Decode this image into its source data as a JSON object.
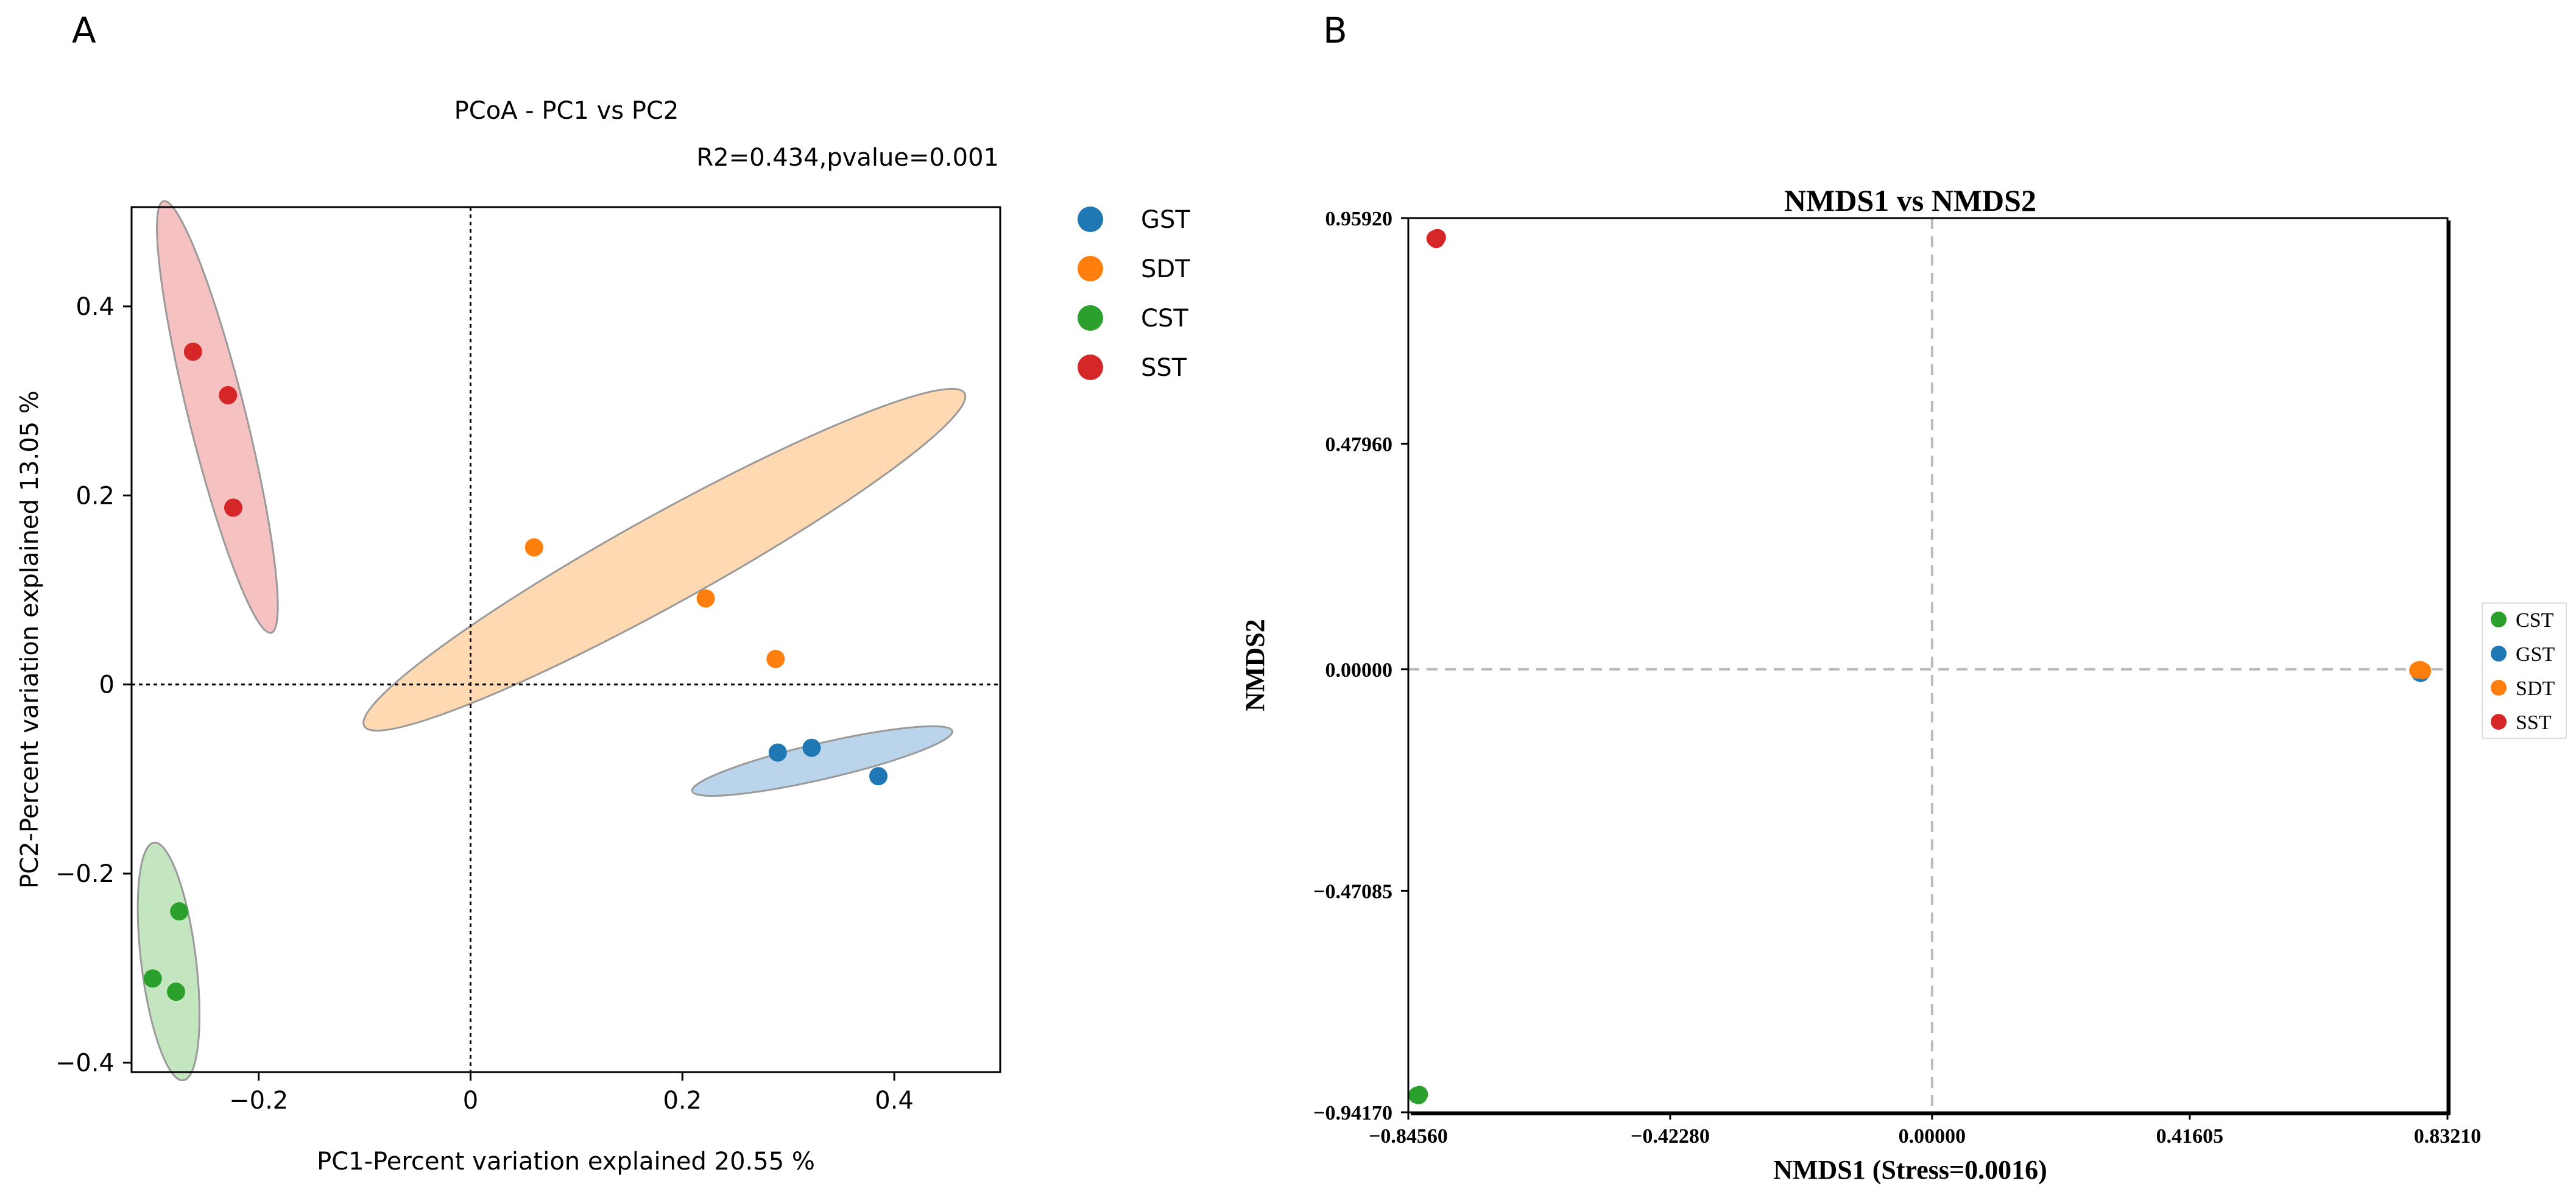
{
  "panels": {
    "a": {
      "label": "A"
    },
    "b": {
      "label": "B"
    }
  },
  "colors": {
    "GST": "#1f77b4",
    "SDT": "#ff7f0e",
    "CST": "#2ca02c",
    "SST": "#d62728",
    "GST_fill": "#a9c9e6",
    "SDT_fill": "#ffcf9e",
    "CST_fill": "#b4e0b0",
    "SST_fill": "#f2b1b2"
  },
  "chart_data": [
    {
      "type": "scatter",
      "title": "PCoA - PC1 vs PC2",
      "annotation": "R2=0.434,pvalue=0.001",
      "xlabel": "PC1-Percent variation explained 20.55 %",
      "ylabel": "PC2-Percent variation explained 13.05 %",
      "xlim": [
        -0.32,
        0.5
      ],
      "ylim": [
        -0.41,
        0.505
      ],
      "xticks": [
        -0.2,
        0,
        0.2,
        0.4
      ],
      "xtick_labels": [
        "−0.2",
        "0",
        "0.2",
        "0.4"
      ],
      "yticks": [
        -0.4,
        -0.2,
        0,
        0.2,
        0.4
      ],
      "ytick_labels": [
        "−0.4",
        "−0.2",
        "0",
        "0.2",
        "0.4"
      ],
      "reference_lines": {
        "x": 0,
        "y": 0,
        "style": "dotted"
      },
      "legend_position": "outside-right-top",
      "series": [
        {
          "name": "GST",
          "x": [
            0.29,
            0.322,
            0.385
          ],
          "y": [
            -0.072,
            -0.067,
            -0.097
          ],
          "ellipse": {
            "cx": 0.332,
            "cy": -0.081,
            "rx": 0.126,
            "ry": 0.019,
            "angle_deg": -13
          }
        },
        {
          "name": "SDT",
          "x": [
            0.06,
            0.222,
            0.288
          ],
          "y": [
            0.145,
            0.091,
            0.027
          ],
          "ellipse": {
            "cx": 0.183,
            "cy": 0.132,
            "rx": 0.324,
            "ry": 0.047,
            "angle_deg": -29
          }
        },
        {
          "name": "CST",
          "x": [
            -0.3,
            -0.275,
            -0.278
          ],
          "y": [
            -0.311,
            -0.24,
            -0.325
          ],
          "ellipse": {
            "cx": -0.285,
            "cy": -0.293,
            "rx": 0.113,
            "ry": 0.029,
            "angle_deg": 83
          }
        },
        {
          "name": "SST",
          "x": [
            -0.262,
            -0.229,
            -0.224
          ],
          "y": [
            0.352,
            0.306,
            0.187
          ],
          "ellipse": {
            "cx": -0.239,
            "cy": 0.283,
            "rx": 0.21,
            "ry": 0.03,
            "angle_deg": 76
          }
        }
      ]
    },
    {
      "type": "scatter",
      "title": "NMDS1 vs NMDS2",
      "xlabel": "NMDS1 (Stress=0.0016)",
      "ylabel": "NMDS2",
      "xlim": [
        -0.8456,
        0.8321
      ],
      "ylim": [
        -0.9417,
        0.9592
      ],
      "xticks": [
        -0.8456,
        -0.4228,
        0.0,
        0.41605,
        0.8321
      ],
      "xtick_labels": [
        "−0.84560",
        "−0.42280",
        "0.00000",
        "0.41605",
        "0.83210"
      ],
      "yticks": [
        -0.9417,
        -0.47085,
        0.0,
        0.4796,
        0.9592
      ],
      "ytick_labels": [
        "−0.94170",
        "−0.47085",
        "0.00000",
        "0.47960",
        "0.95920"
      ],
      "reference_lines": {
        "x": 0,
        "y": 0,
        "style": "dashed"
      },
      "legend_position": "outside-right-middle",
      "series": [
        {
          "name": "CST",
          "x": [
            -0.8315,
            -0.8275,
            -0.829
          ],
          "y": [
            -0.9055,
            -0.9035,
            -0.9065
          ]
        },
        {
          "name": "GST",
          "x": [
            0.787,
            0.791,
            0.789
          ],
          "y": [
            -0.008,
            -0.006,
            -0.009
          ]
        },
        {
          "name": "SDT",
          "x": [
            0.784,
            0.788,
            0.792
          ],
          "y": [
            -0.002,
            0.0,
            -0.003
          ]
        },
        {
          "name": "SST",
          "x": [
            -0.8025,
            -0.7985,
            -0.8005
          ],
          "y": [
            0.9155,
            0.918,
            0.9135
          ]
        }
      ]
    }
  ]
}
